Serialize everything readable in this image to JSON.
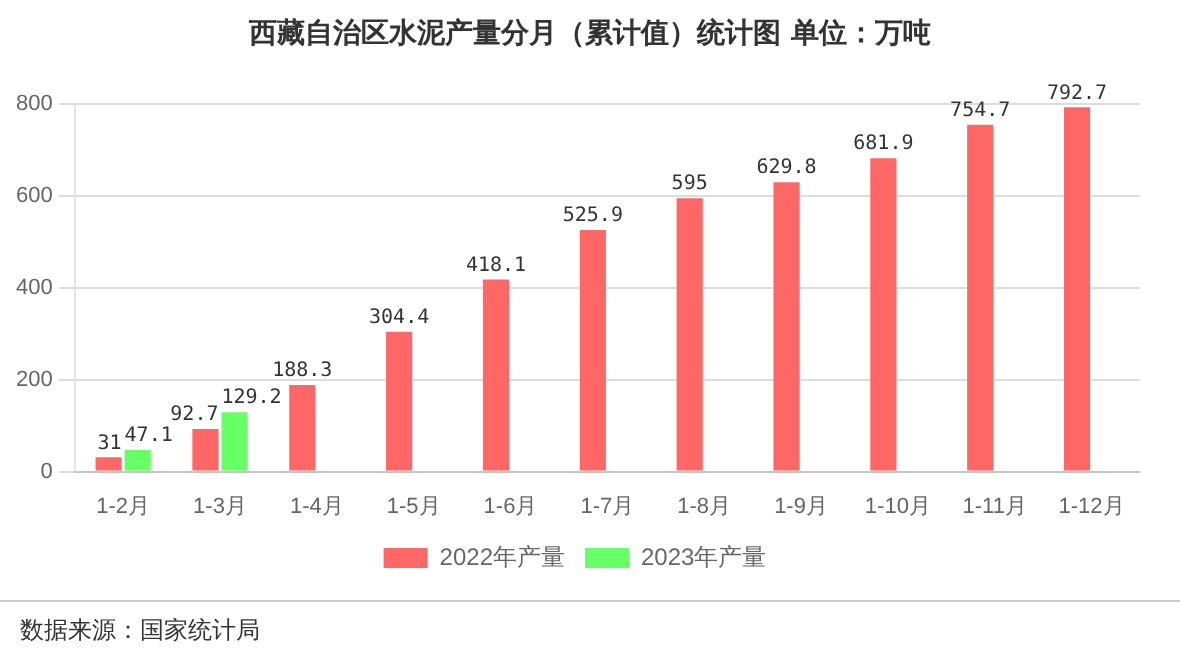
{
  "chart_data": {
    "type": "bar",
    "title": "西藏自治区水泥产量分月（累计值）统计图 单位：万吨",
    "categories": [
      "1-2月",
      "1-3月",
      "1-4月",
      "1-5月",
      "1-6月",
      "1-7月",
      "1-8月",
      "1-9月",
      "1-10月",
      "1-11月",
      "1-12月"
    ],
    "series": [
      {
        "name": "2022年产量",
        "color": "#ff6666",
        "values": [
          31,
          92.7,
          188.3,
          304.4,
          418.1,
          525.9,
          595,
          629.8,
          681.9,
          754.7,
          792.7
        ]
      },
      {
        "name": "2023年产量",
        "color": "#66ff66",
        "values": [
          47.1,
          129.2,
          null,
          null,
          null,
          null,
          null,
          null,
          null,
          null,
          null
        ]
      }
    ],
    "ylim": [
      0,
      800
    ],
    "yticks": [
      0,
      200,
      400,
      600,
      800
    ],
    "grid": "y",
    "legend": "bottom",
    "data_labels": true,
    "annotations": [
      "数据来源：国家统计局"
    ]
  }
}
